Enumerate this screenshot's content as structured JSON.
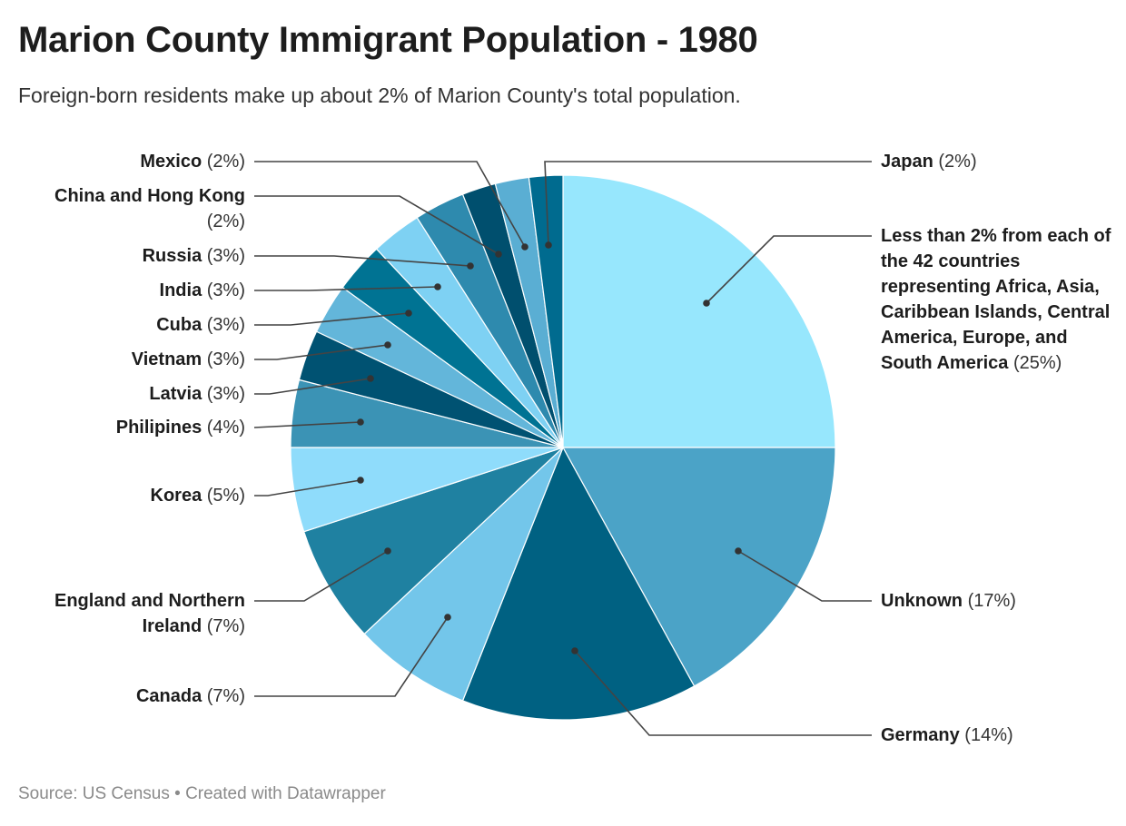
{
  "title": "Marion County Immigrant Population - 1980",
  "subtitle": "Foreign-born residents make up about 2% of Marion County's total population.",
  "source": "Source: US Census • Created with Datawrapper",
  "chart_data": {
    "type": "pie",
    "title": "Marion County Immigrant Population - 1980",
    "start": "12 o'clock, clockwise",
    "slices": [
      {
        "label": "Less than 2% from each of the 42 countries representing Africa, Asia, Caribbean Islands, Central America, Europe, and South America",
        "value": 25,
        "pct": "(25%)",
        "color": "#97e7fd"
      },
      {
        "label": "Unknown",
        "value": 17,
        "pct": "(17%)",
        "color": "#4ba3c7"
      },
      {
        "label": "Germany",
        "value": 14,
        "pct": "(14%)",
        "color": "#006182"
      },
      {
        "label": "Canada",
        "value": 7,
        "pct": "(7%)",
        "color": "#73c6ea"
      },
      {
        "label": "England and Northern Ireland",
        "value": 7,
        "pct": "(7%)",
        "color": "#1f81a1"
      },
      {
        "label": "Korea",
        "value": 5,
        "pct": "(5%)",
        "color": "#8fdcfb"
      },
      {
        "label": "Philipines",
        "value": 4,
        "pct": "(4%)",
        "color": "#3b93b5"
      },
      {
        "label": "Latvia",
        "value": 3,
        "pct": "(3%)",
        "color": "#005272"
      },
      {
        "label": "Vietnam",
        "value": 3,
        "pct": "(3%)",
        "color": "#63b6da"
      },
      {
        "label": "Cuba",
        "value": 3,
        "pct": "(3%)",
        "color": "#007393"
      },
      {
        "label": "India",
        "value": 3,
        "pct": "(3%)",
        "color": "#7ed1f3"
      },
      {
        "label": "Russia",
        "value": 3,
        "pct": "(3%)",
        "color": "#2e8aae"
      },
      {
        "label": "China and Hong Kong",
        "value": 2,
        "pct": "(2%)",
        "color": "#004f6e"
      },
      {
        "label": "Mexico",
        "value": 2,
        "pct": "(2%)",
        "color": "#5aaed3"
      },
      {
        "label": "Japan",
        "value": 2,
        "pct": "(2%)",
        "color": "#006b8f"
      }
    ]
  }
}
